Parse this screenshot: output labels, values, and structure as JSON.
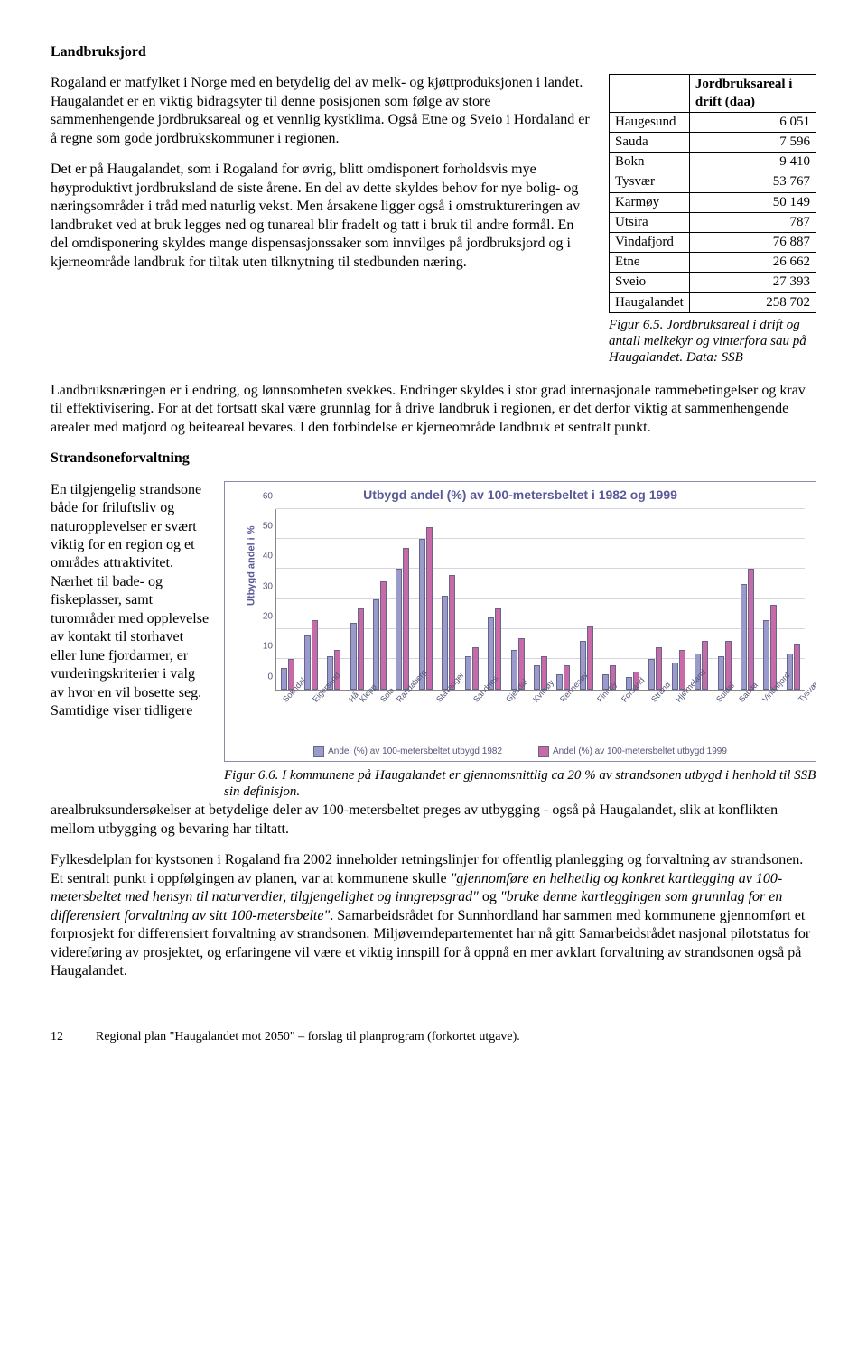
{
  "heading1": "Landbruksjord",
  "top": {
    "p1": "Rogaland er matfylket i Norge med en betydelig del av melk- og kjøttproduksjonen i landet. Haugalandet er en viktig bidragsyter til denne posisjonen som følge av store sammenhengende jordbruksareal og et vennlig kystklima. Også Etne og Sveio i Hordaland er å regne som gode jordbrukskommuner i regionen.",
    "p2": "Det er på Haugalandet, som i Rogaland for øvrig, blitt omdisponert forholdsvis mye høyproduktivt jordbruksland de siste årene. En del av dette skyldes behov for nye bolig- og næringsområder i tråd med naturlig vekst. Men årsakene ligger også i omstruktureringen av landbruket ved at bruk legges ned og tunareal blir fradelt og tatt i bruk til andre formål. En del omdisponering skyldes mange dispensasjonssaker som innvilges på jordbruksjord og i kjerneområde landbruk for tiltak uten tilknytning til stedbunden næring."
  },
  "table": {
    "header": {
      "c1": "",
      "c2": "Jordbruksareal i drift (daa)"
    },
    "rows": [
      {
        "name": "Haugesund",
        "val": "6 051"
      },
      {
        "name": "Sauda",
        "val": "7 596"
      },
      {
        "name": "Bokn",
        "val": "9 410"
      },
      {
        "name": "Tysvær",
        "val": "53 767"
      },
      {
        "name": "Karmøy",
        "val": "50 149"
      },
      {
        "name": "Utsira",
        "val": "787"
      },
      {
        "name": "Vindafjord",
        "val": "76 887"
      },
      {
        "name": "Etne",
        "val": "26 662"
      },
      {
        "name": "Sveio",
        "val": "27 393"
      },
      {
        "name": "Haugalandet",
        "val": "258 702"
      }
    ],
    "caption": "Figur 6.5. Jordbruksareal i drift og antall melkekyr og vinterfora sau på Haugalandet. Data: SSB"
  },
  "para_mid": "Landbruksnæringen er i endring, og lønnsomheten svekkes. Endringer skyldes i stor grad internasjonale rammebetingelser og krav til effektivisering. For at det fortsatt skal være grunnlag for å drive landbruk i regionen, er det derfor viktig at sammenhengende arealer med matjord og beiteareal bevares. I den forbindelse er kjerneområde landbruk et sentralt punkt.",
  "heading2": "Strandsoneforvaltning",
  "strand_left": "En tilgjengelig strandsone både for friluftsliv og naturopplevelser er svært viktig for en region og et områdes attraktivitet. Nærhet til bade- og fiskeplasser, samt turområder med opplevelse av kontakt til storhavet eller lune fjordarmer, er vurderingskriterier i valg av hvor en vil bosette seg. Samtidige viser tidligere",
  "chart": {
    "title": "Utbygd andel (%) av 100-metersbeltet i 1982 og 1999",
    "ylabel": "Utbygd andel i %",
    "ymax": 60,
    "ytick_step": 10,
    "colors": {
      "a": "#9a9acc",
      "b": "#c86aa8",
      "border": "#666688",
      "grid": "#d6d6e0"
    },
    "categories": [
      "Sokndal",
      "Eigersund",
      "Hå",
      "Klepp",
      "Sola",
      "Randaberg",
      "Stavanger",
      "Sandnes",
      "Gjesdal",
      "Kvitsøy",
      "Rennesøy",
      "Finnøy",
      "Forsand",
      "Strand",
      "Hjelmeland",
      "Suldal",
      "Sauda",
      "Vindafjord",
      "Tysvær",
      "Bokn",
      "Haugesund",
      "Karmøy",
      "Utsira"
    ],
    "series_a": [
      7,
      18,
      11,
      22,
      30,
      40,
      50,
      31,
      11,
      24,
      13,
      8,
      5,
      16,
      5,
      4,
      10,
      9,
      12,
      11,
      35,
      23,
      12
    ],
    "series_b": [
      10,
      23,
      13,
      27,
      36,
      47,
      54,
      38,
      14,
      27,
      17,
      11,
      8,
      21,
      8,
      6,
      14,
      13,
      16,
      16,
      40,
      28,
      15
    ],
    "legend_a": "Andel (%) av 100-metersbeltet utbygd 1982",
    "legend_b": "Andel (%) av 100-metersbeltet utbygd 1999",
    "caption": "Figur 6.6. I kommunene på Haugalandet er gjennomsnittlig ca 20 % av strandsonen utbygd i henhold til SSB sin definisjon."
  },
  "strand_after": "arealbruksundersøkelser at betydelige deler av 100-metersbeltet preges av utbygging - også på Haugalandet, slik at konflikten mellom utbygging og bevaring har tiltatt.",
  "para_fylke_a": "Fylkesdelplan for kystsonen i Rogaland fra 2002 inneholder retningslinjer for offentlig planlegging og forvaltning av strandsonen. Et sentralt punkt i oppfølgingen av planen, var at kommunene skulle ",
  "quote1": "\"gjennomføre en helhetlig og konkret kartlegging av 100-metersbeltet med hensyn til naturverdier, tilgjengelighet og inngrepsgrad\"",
  "mid_og": " og ",
  "quote2": "\"bruke denne kartleggingen som grunnlag for en differensiert forvaltning av sitt 100-metersbelte\"",
  "para_fylke_b": ". Samarbeidsrådet for Sunnhordland har sammen med kommunene gjennomført et forprosjekt for differensiert forvaltning av strandsonen. Miljøverndepartementet har nå gitt Samarbeidsrådet nasjonal pilotstatus for videreføring av prosjektet, og erfaringene vil være et viktig innspill for å oppnå en mer avklart forvaltning av strandsonen også på Haugalandet.",
  "footer": {
    "page": "12",
    "text": "Regional plan \"Haugalandet mot 2050\" – forslag til planprogram (forkortet utgave)."
  }
}
